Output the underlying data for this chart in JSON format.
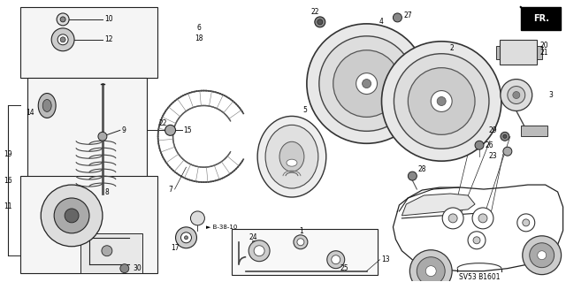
{
  "background_color": "#ffffff",
  "diagram_label": "SV53 B1601",
  "fr_label": "FR.",
  "figsize": [
    6.4,
    3.19
  ],
  "dpi": 100,
  "line_color": "#222222",
  "gray_fill": "#cccccc",
  "dark_fill": "#555555"
}
